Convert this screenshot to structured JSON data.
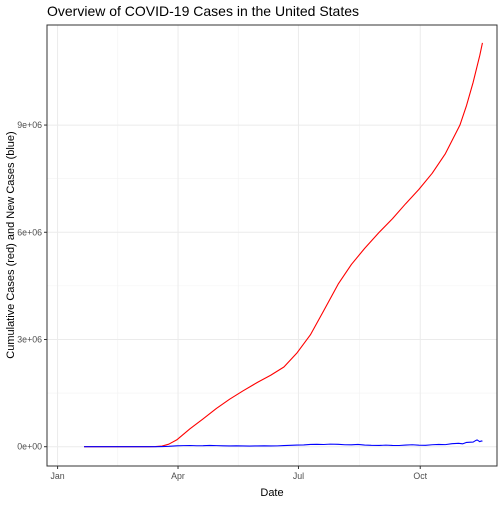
{
  "chart_data": {
    "type": "line",
    "title": "Overview of COVID-19 Cases in the United States",
    "xlabel": "Date",
    "ylabel": "Cumulative Cases (red) and New Cases (blue)",
    "x_ticks": [
      {
        "date": "2020-01-01",
        "label": "Jan"
      },
      {
        "date": "2020-04-01",
        "label": "Apr"
      },
      {
        "date": "2020-07-01",
        "label": "Jul"
      },
      {
        "date": "2020-10-01",
        "label": "Oct"
      }
    ],
    "y_ticks": [
      {
        "value": 0,
        "label": "0e+00"
      },
      {
        "value": 3000000,
        "label": "3e+06"
      },
      {
        "value": 6000000,
        "label": "6e+06"
      },
      {
        "value": 9000000,
        "label": "9e+06"
      }
    ],
    "xlim": [
      "2019-12-24",
      "2020-11-28"
    ],
    "ylim": [
      -540000,
      11800000
    ],
    "grid": true,
    "theme": "bw",
    "series": [
      {
        "color": "#ff0000",
        "points": [
          [
            "2020-01-21",
            0
          ],
          [
            "2020-03-01",
            75
          ],
          [
            "2020-03-10",
            1000
          ],
          [
            "2020-03-15",
            3500
          ],
          [
            "2020-03-20",
            19000
          ],
          [
            "2020-03-25",
            70000
          ],
          [
            "2020-03-31",
            190000
          ],
          [
            "2020-04-10",
            500000
          ],
          [
            "2020-04-20",
            780000
          ],
          [
            "2020-04-30",
            1070000
          ],
          [
            "2020-05-10",
            1330000
          ],
          [
            "2020-05-20",
            1560000
          ],
          [
            "2020-05-31",
            1800000
          ],
          [
            "2020-06-10",
            2000000
          ],
          [
            "2020-06-20",
            2230000
          ],
          [
            "2020-06-30",
            2630000
          ],
          [
            "2020-07-10",
            3130000
          ],
          [
            "2020-07-20",
            3800000
          ],
          [
            "2020-07-31",
            4550000
          ],
          [
            "2020-08-10",
            5100000
          ],
          [
            "2020-08-20",
            5550000
          ],
          [
            "2020-08-31",
            6000000
          ],
          [
            "2020-09-10",
            6380000
          ],
          [
            "2020-09-20",
            6800000
          ],
          [
            "2020-09-30",
            7200000
          ],
          [
            "2020-10-10",
            7650000
          ],
          [
            "2020-10-20",
            8200000
          ],
          [
            "2020-10-31",
            9000000
          ],
          [
            "2020-11-05",
            9550000
          ],
          [
            "2020-11-10",
            10200000
          ],
          [
            "2020-11-15",
            10950000
          ],
          [
            "2020-11-17",
            11300000
          ]
        ]
      },
      {
        "color": "#0000ff",
        "points": [
          [
            "2020-01-21",
            0
          ],
          [
            "2020-03-01",
            20
          ],
          [
            "2020-03-10",
            400
          ],
          [
            "2020-03-15",
            1000
          ],
          [
            "2020-03-20",
            5000
          ],
          [
            "2020-03-25",
            12000
          ],
          [
            "2020-03-31",
            26000
          ],
          [
            "2020-04-05",
            30000
          ],
          [
            "2020-04-10",
            34000
          ],
          [
            "2020-04-15",
            27000
          ],
          [
            "2020-04-20",
            28000
          ],
          [
            "2020-04-25",
            35000
          ],
          [
            "2020-04-30",
            30000
          ],
          [
            "2020-05-05",
            25000
          ],
          [
            "2020-05-10",
            22000
          ],
          [
            "2020-05-15",
            26000
          ],
          [
            "2020-05-20",
            21000
          ],
          [
            "2020-05-25",
            19000
          ],
          [
            "2020-05-31",
            22000
          ],
          [
            "2020-06-05",
            24000
          ],
          [
            "2020-06-10",
            21000
          ],
          [
            "2020-06-15",
            23000
          ],
          [
            "2020-06-20",
            32000
          ],
          [
            "2020-06-25",
            39000
          ],
          [
            "2020-06-30",
            47000
          ],
          [
            "2020-07-05",
            50000
          ],
          [
            "2020-07-10",
            64000
          ],
          [
            "2020-07-15",
            68000
          ],
          [
            "2020-07-20",
            62000
          ],
          [
            "2020-07-25",
            72000
          ],
          [
            "2020-07-31",
            68000
          ],
          [
            "2020-08-05",
            55000
          ],
          [
            "2020-08-10",
            52000
          ],
          [
            "2020-08-15",
            64000
          ],
          [
            "2020-08-20",
            45000
          ],
          [
            "2020-08-25",
            38000
          ],
          [
            "2020-08-31",
            35000
          ],
          [
            "2020-09-05",
            44000
          ],
          [
            "2020-09-10",
            36000
          ],
          [
            "2020-09-15",
            34000
          ],
          [
            "2020-09-20",
            47000
          ],
          [
            "2020-09-25",
            55000
          ],
          [
            "2020-09-30",
            42000
          ],
          [
            "2020-10-05",
            38000
          ],
          [
            "2020-10-10",
            55000
          ],
          [
            "2020-10-15",
            64000
          ],
          [
            "2020-10-20",
            58000
          ],
          [
            "2020-10-25",
            85000
          ],
          [
            "2020-10-30",
            95000
          ],
          [
            "2020-11-02",
            80000
          ],
          [
            "2020-11-05",
            120000
          ],
          [
            "2020-11-08",
            125000
          ],
          [
            "2020-11-10",
            130000
          ],
          [
            "2020-11-12",
            175000
          ],
          [
            "2020-11-13",
            190000
          ],
          [
            "2020-11-15",
            140000
          ],
          [
            "2020-11-16",
            160000
          ],
          [
            "2020-11-17",
            155000
          ]
        ]
      }
    ]
  }
}
